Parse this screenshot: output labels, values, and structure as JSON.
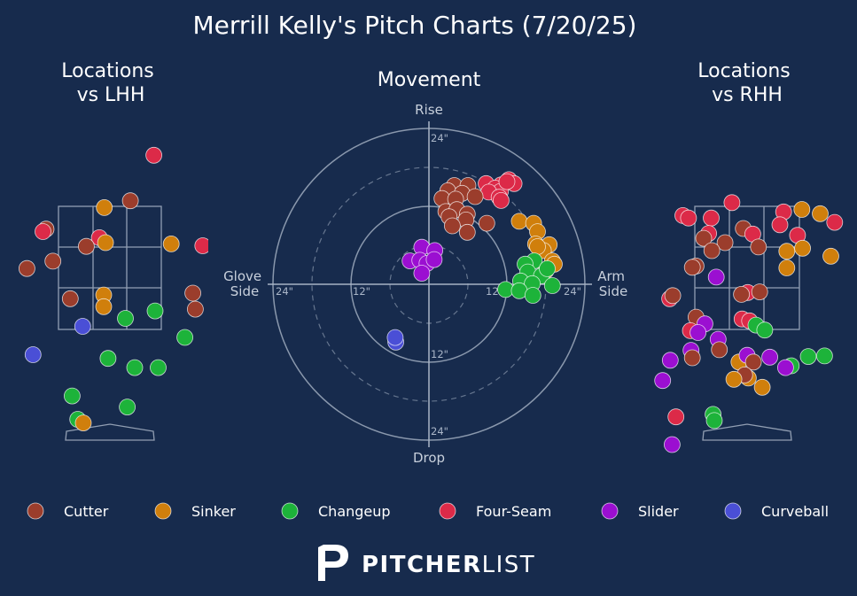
{
  "title": "Merrill Kelly's Pitch Charts (7/20/25)",
  "panels": {
    "lhh_title": [
      "Locations",
      "vs LHH"
    ],
    "movement_title": "Movement",
    "rhh_title": [
      "Locations",
      "vs RHH"
    ]
  },
  "movement_axis_labels": {
    "top": "Rise",
    "bottom": "Drop",
    "left": [
      "Glove",
      "Side"
    ],
    "right": [
      "Arm",
      "Side"
    ]
  },
  "movement_ring_labels": {
    "top_24": "24\"",
    "top_12": "12\"",
    "left_24": "24\"",
    "left_12": "12\"",
    "right_12": "12\"",
    "right_24": "24\"",
    "bottom_12": "12\"",
    "bottom_24": "24\""
  },
  "colors": {
    "background": "#172b4d",
    "Cutter": "#9b3d2c",
    "Sinker": "#d07f0c",
    "Changeup": "#1db33a",
    "Four-Seam": "#dc2a48",
    "Slider": "#9b0fd1",
    "Curveball": "#4a4fd6"
  },
  "legend": [
    "Cutter",
    "Sinker",
    "Changeup",
    "Four-Seam",
    "Slider",
    "Curveball"
  ],
  "brand": {
    "logo_icon": "pitcherlist-p-logo-icon",
    "bold": "PITCHER",
    "light": "LIST"
  },
  "chart_data": [
    {
      "type": "scatter",
      "panel": "Locations vs LHH",
      "x_unit": "plate_x (ft, catcher view)",
      "y_unit": "plate_z (ft)",
      "strike_zone": {
        "x": [
          -0.83,
          0.83
        ],
        "z": [
          1.5,
          3.5
        ]
      },
      "points": [
        {
          "pitch": "Four-Seam",
          "x": 0.71,
          "z": 4.33
        },
        {
          "pitch": "Cutter",
          "x": 0.33,
          "z": 3.59
        },
        {
          "pitch": "Sinker",
          "x": -0.09,
          "z": 3.48
        },
        {
          "pitch": "Cutter",
          "x": -1.03,
          "z": 3.13
        },
        {
          "pitch": "Four-Seam",
          "x": -1.08,
          "z": 3.09
        },
        {
          "pitch": "Four-Seam",
          "x": -0.17,
          "z": 2.99
        },
        {
          "pitch": "Sinker",
          "x": -0.07,
          "z": 2.91
        },
        {
          "pitch": "Cutter",
          "x": -0.38,
          "z": 2.85
        },
        {
          "pitch": "Sinker",
          "x": 0.99,
          "z": 2.89
        },
        {
          "pitch": "Four-Seam",
          "x": 1.5,
          "z": 2.86
        },
        {
          "pitch": "Cutter",
          "x": -0.92,
          "z": 2.61
        },
        {
          "pitch": "Sinker",
          "x": -1.95,
          "z": 2.51
        },
        {
          "pitch": "Cutter",
          "x": -1.34,
          "z": 2.49
        },
        {
          "pitch": "Cutter",
          "x": -0.64,
          "z": 2.0
        },
        {
          "pitch": "Sinker",
          "x": -0.1,
          "z": 2.06
        },
        {
          "pitch": "Sinker",
          "x": -0.1,
          "z": 1.87
        },
        {
          "pitch": "Cutter",
          "x": 1.34,
          "z": 2.09
        },
        {
          "pitch": "Cutter",
          "x": 1.38,
          "z": 1.83
        },
        {
          "pitch": "Changeup",
          "x": 0.73,
          "z": 1.8
        },
        {
          "pitch": "Changeup",
          "x": 0.25,
          "z": 1.68
        },
        {
          "pitch": "Curveball",
          "x": -0.44,
          "z": 1.55
        },
        {
          "pitch": "Changeup",
          "x": 1.21,
          "z": 1.37
        },
        {
          "pitch": "Curveball",
          "x": -1.24,
          "z": 1.09
        },
        {
          "pitch": "Changeup",
          "x": -0.03,
          "z": 1.03
        },
        {
          "pitch": "Changeup",
          "x": 0.4,
          "z": 0.88
        },
        {
          "pitch": "Changeup",
          "x": 0.78,
          "z": 0.88
        },
        {
          "pitch": "Changeup",
          "x": -0.61,
          "z": 0.42
        },
        {
          "pitch": "Changeup",
          "x": 0.28,
          "z": 0.24
        },
        {
          "pitch": "Changeup",
          "x": -0.52,
          "z": 0.04
        },
        {
          "pitch": "Sinker",
          "x": -0.43,
          "z": -0.02
        }
      ]
    },
    {
      "type": "scatter",
      "panel": "Movement",
      "x_unit": "horizontal break (in, + = arm side)",
      "y_unit": "induced vertical break (in)",
      "rings": [
        6,
        12,
        18,
        24
      ],
      "points": [
        {
          "pitch": "Four-Seam",
          "x": 12.3,
          "y": 16.1
        },
        {
          "pitch": "Four-Seam",
          "x": 11.1,
          "y": 15.3
        },
        {
          "pitch": "Four-Seam",
          "x": 13.1,
          "y": 15.5
        },
        {
          "pitch": "Four-Seam",
          "x": 8.8,
          "y": 15.5
        },
        {
          "pitch": "Four-Seam",
          "x": 10.2,
          "y": 14.8
        },
        {
          "pitch": "Four-Seam",
          "x": 11.0,
          "y": 14.3
        },
        {
          "pitch": "Four-Seam",
          "x": 12.0,
          "y": 15.8
        },
        {
          "pitch": "Four-Seam",
          "x": 9.2,
          "y": 14.2
        },
        {
          "pitch": "Four-Seam",
          "x": 10.8,
          "y": 13.4
        },
        {
          "pitch": "Four-Seam",
          "x": 11.1,
          "y": 12.9
        },
        {
          "pitch": "Cutter",
          "x": 3.9,
          "y": 15.2
        },
        {
          "pitch": "Cutter",
          "x": 6.0,
          "y": 15.2
        },
        {
          "pitch": "Cutter",
          "x": 2.9,
          "y": 14.4
        },
        {
          "pitch": "Cutter",
          "x": 5.1,
          "y": 14.0
        },
        {
          "pitch": "Cutter",
          "x": 7.1,
          "y": 13.5
        },
        {
          "pitch": "Cutter",
          "x": 2.0,
          "y": 13.2
        },
        {
          "pitch": "Cutter",
          "x": 4.1,
          "y": 13.1
        },
        {
          "pitch": "Cutter",
          "x": 2.6,
          "y": 11.2
        },
        {
          "pitch": "Cutter",
          "x": 4.3,
          "y": 11.5
        },
        {
          "pitch": "Cutter",
          "x": 5.9,
          "y": 10.8
        },
        {
          "pitch": "Cutter",
          "x": 3.1,
          "y": 10.4
        },
        {
          "pitch": "Cutter",
          "x": 5.7,
          "y": 9.9
        },
        {
          "pitch": "Cutter",
          "x": 3.6,
          "y": 9.0
        },
        {
          "pitch": "Cutter",
          "x": 8.9,
          "y": 9.4
        },
        {
          "pitch": "Cutter",
          "x": 5.9,
          "y": 8.0
        },
        {
          "pitch": "Sinker",
          "x": 13.9,
          "y": 9.7
        },
        {
          "pitch": "Sinker",
          "x": 16.1,
          "y": 9.4
        },
        {
          "pitch": "Sinker",
          "x": 16.7,
          "y": 8.1
        },
        {
          "pitch": "Sinker",
          "x": 18.5,
          "y": 6.1
        },
        {
          "pitch": "Sinker",
          "x": 16.4,
          "y": 6.2
        },
        {
          "pitch": "Sinker",
          "x": 17.6,
          "y": 5.2
        },
        {
          "pitch": "Sinker",
          "x": 16.7,
          "y": 5.8
        },
        {
          "pitch": "Sinker",
          "x": 19.0,
          "y": 3.6
        },
        {
          "pitch": "Sinker",
          "x": 18.0,
          "y": 2.1
        },
        {
          "pitch": "Sinker",
          "x": 19.3,
          "y": 3.1
        },
        {
          "pitch": "Changeup",
          "x": 16.2,
          "y": 3.6
        },
        {
          "pitch": "Changeup",
          "x": 14.8,
          "y": 3.1
        },
        {
          "pitch": "Changeup",
          "x": 15.2,
          "y": 1.9
        },
        {
          "pitch": "Changeup",
          "x": 17.3,
          "y": 1.3
        },
        {
          "pitch": "Changeup",
          "x": 18.2,
          "y": 2.4
        },
        {
          "pitch": "Changeup",
          "x": 14.1,
          "y": 0.5
        },
        {
          "pitch": "Changeup",
          "x": 15.9,
          "y": 0.1
        },
        {
          "pitch": "Changeup",
          "x": 11.8,
          "y": -0.8
        },
        {
          "pitch": "Changeup",
          "x": 13.9,
          "y": -1.0
        },
        {
          "pitch": "Changeup",
          "x": 16.0,
          "y": -1.7
        },
        {
          "pitch": "Changeup",
          "x": 19.0,
          "y": -0.2
        },
        {
          "pitch": "Slider",
          "x": -1.1,
          "y": 5.7
        },
        {
          "pitch": "Slider",
          "x": 0.9,
          "y": 5.2
        },
        {
          "pitch": "Slider",
          "x": -2.9,
          "y": 3.6
        },
        {
          "pitch": "Slider",
          "x": -1.4,
          "y": 3.7
        },
        {
          "pitch": "Slider",
          "x": -0.3,
          "y": 3.2
        },
        {
          "pitch": "Slider",
          "x": 0.8,
          "y": 3.8
        },
        {
          "pitch": "Slider",
          "x": -1.1,
          "y": 1.7
        },
        {
          "pitch": "Curveball",
          "x": -5.1,
          "y": -8.9
        },
        {
          "pitch": "Curveball",
          "x": -5.2,
          "y": -8.2
        }
      ]
    },
    {
      "type": "scatter",
      "panel": "Locations vs RHH",
      "x_unit": "plate_x (ft, catcher view)",
      "y_unit": "plate_z (ft)",
      "strike_zone": {
        "x": [
          -0.83,
          0.83
        ],
        "z": [
          1.5,
          3.5
        ]
      },
      "points": [
        {
          "pitch": "Four-Seam",
          "x": -0.24,
          "z": 3.56
        },
        {
          "pitch": "Sinker",
          "x": 0.87,
          "z": 3.45
        },
        {
          "pitch": "Four-Seam",
          "x": 0.58,
          "z": 3.41
        },
        {
          "pitch": "Sinker",
          "x": 1.16,
          "z": 3.38
        },
        {
          "pitch": "Four-Seam",
          "x": -1.02,
          "z": 3.35
        },
        {
          "pitch": "Four-Seam",
          "x": -0.93,
          "z": 3.31
        },
        {
          "pitch": "Four-Seam",
          "x": -0.57,
          "z": 3.31
        },
        {
          "pitch": "Four-Seam",
          "x": 0.52,
          "z": 3.2
        },
        {
          "pitch": "Four-Seam",
          "x": 1.39,
          "z": 3.24
        },
        {
          "pitch": "Cutter",
          "x": -0.06,
          "z": 3.14
        },
        {
          "pitch": "Four-Seam",
          "x": -0.61,
          "z": 3.06
        },
        {
          "pitch": "Four-Seam",
          "x": 0.09,
          "z": 3.05
        },
        {
          "pitch": "Four-Seam",
          "x": 0.8,
          "z": 3.03
        },
        {
          "pitch": "Cutter",
          "x": -0.35,
          "z": 2.91
        },
        {
          "pitch": "Cutter",
          "x": -0.69,
          "z": 2.98
        },
        {
          "pitch": "Cutter",
          "x": -0.56,
          "z": 2.78
        },
        {
          "pitch": "Cutter",
          "x": 0.18,
          "z": 2.84
        },
        {
          "pitch": "Sinker",
          "x": 0.63,
          "z": 2.77
        },
        {
          "pitch": "Sinker",
          "x": 0.88,
          "z": 2.82
        },
        {
          "pitch": "Sinker",
          "x": 1.33,
          "z": 2.69
        },
        {
          "pitch": "Sinker",
          "x": 0.63,
          "z": 2.5
        },
        {
          "pitch": "Cutter",
          "x": -0.81,
          "z": 2.53
        },
        {
          "pitch": "Cutter",
          "x": -0.87,
          "z": 2.51
        },
        {
          "pitch": "Slider",
          "x": -0.49,
          "z": 2.35
        },
        {
          "pitch": "Four-Seam",
          "x": 0.01,
          "z": 2.1
        },
        {
          "pitch": "Cutter",
          "x": 0.2,
          "z": 2.11
        },
        {
          "pitch": "Cutter",
          "x": -0.09,
          "z": 2.07
        },
        {
          "pitch": "Four-Seam",
          "x": -1.23,
          "z": 2.0
        },
        {
          "pitch": "Cutter",
          "x": -1.18,
          "z": 2.05
        },
        {
          "pitch": "Cutter",
          "x": -0.81,
          "z": 1.7
        },
        {
          "pitch": "Slider",
          "x": -0.67,
          "z": 1.59
        },
        {
          "pitch": "Four-Seam",
          "x": -0.08,
          "z": 1.67
        },
        {
          "pitch": "Four-Seam",
          "x": 0.04,
          "z": 1.64
        },
        {
          "pitch": "Four-Seam",
          "x": -0.9,
          "z": 1.48
        },
        {
          "pitch": "Changeup",
          "x": 0.14,
          "z": 1.57
        },
        {
          "pitch": "Changeup",
          "x": 0.28,
          "z": 1.49
        },
        {
          "pitch": "Slider",
          "x": -0.78,
          "z": 1.45
        },
        {
          "pitch": "Slider",
          "x": -0.46,
          "z": 1.34
        },
        {
          "pitch": "Slider",
          "x": -0.89,
          "z": 1.16
        },
        {
          "pitch": "Cutter",
          "x": -0.87,
          "z": 1.04
        },
        {
          "pitch": "Cutter",
          "x": -0.44,
          "z": 1.17
        },
        {
          "pitch": "Sinker",
          "x": -0.13,
          "z": 0.97
        },
        {
          "pitch": "Slider",
          "x": 0.0,
          "z": 1.08
        },
        {
          "pitch": "Cutter",
          "x": 0.1,
          "z": 0.97
        },
        {
          "pitch": "Slider",
          "x": 0.36,
          "z": 1.05
        },
        {
          "pitch": "Slider",
          "x": -1.22,
          "z": 1.0
        },
        {
          "pitch": "Changeup",
          "x": 0.7,
          "z": 0.91
        },
        {
          "pitch": "Changeup",
          "x": 0.97,
          "z": 1.06
        },
        {
          "pitch": "Changeup",
          "x": 1.23,
          "z": 1.07
        },
        {
          "pitch": "Slider",
          "x": 0.61,
          "z": 0.88
        },
        {
          "pitch": "Sinker",
          "x": 0.02,
          "z": 0.71
        },
        {
          "pitch": "Cutter",
          "x": -0.04,
          "z": 0.76
        },
        {
          "pitch": "Sinker",
          "x": -0.21,
          "z": 0.69
        },
        {
          "pitch": "Slider",
          "x": -1.34,
          "z": 0.67
        },
        {
          "pitch": "Sinker",
          "x": 0.24,
          "z": 0.56
        },
        {
          "pitch": "Four-Seam",
          "x": -1.13,
          "z": 0.08
        },
        {
          "pitch": "Slider",
          "x": -1.93,
          "z": 0.01
        },
        {
          "pitch": "Changeup",
          "x": -0.54,
          "z": 0.12
        },
        {
          "pitch": "Changeup",
          "x": -0.52,
          "z": 0.02
        },
        {
          "pitch": "Slider",
          "x": -1.19,
          "z": -0.37
        },
        {
          "pitch": "Changeup",
          "x": -0.8,
          "z": -0.81
        },
        {
          "pitch": "Sinker",
          "x": 1.93,
          "z": 3.38
        },
        {
          "pitch": "Four-Seam",
          "x": 1.97,
          "z": 3.2
        },
        {
          "pitch": "Sinker",
          "x": 1.93,
          "z": 2.73
        }
      ]
    }
  ]
}
